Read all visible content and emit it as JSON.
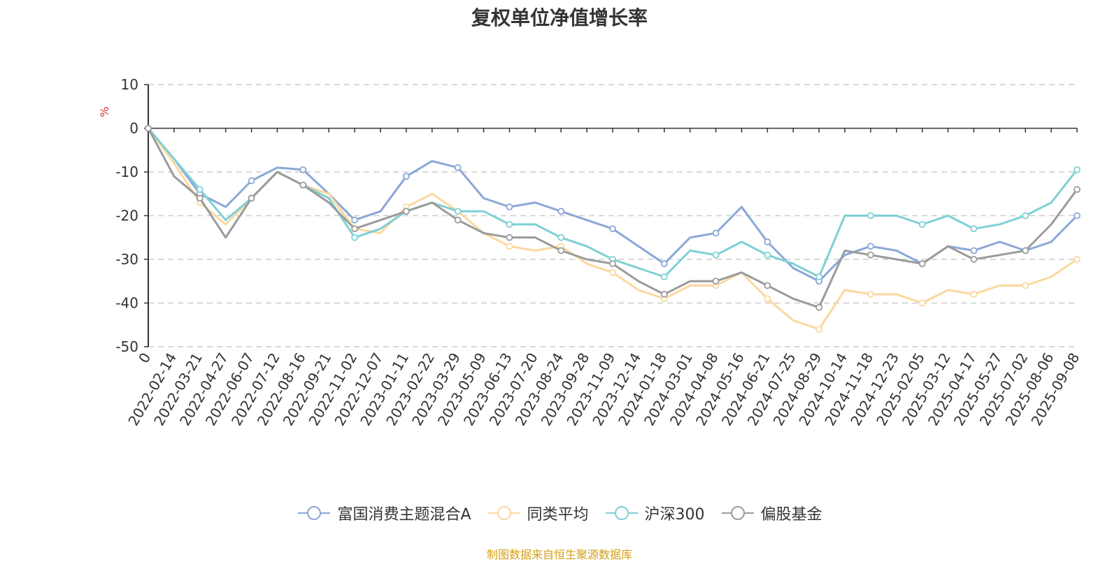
{
  "chart_data": {
    "type": "line",
    "title": "复权单位净值增长率",
    "ylabel": "%",
    "ylim": [
      -50,
      10
    ],
    "yticks": [
      10,
      0,
      -10,
      -20,
      -30,
      -40,
      -50
    ],
    "grid": true,
    "legend_position": "bottom",
    "x_tick_labels": [
      "0",
      "2022-02-14",
      "2022-03-21",
      "2022-04-27",
      "2022-06-07",
      "2022-07-12",
      "2022-08-16",
      "2022-09-21",
      "2022-11-02",
      "2022-12-07",
      "2023-01-11",
      "2023-02-22",
      "2023-03-29",
      "2023-05-09",
      "2023-06-13",
      "2023-07-20",
      "2023-08-24",
      "2023-09-28",
      "2023-11-09",
      "2023-12-14",
      "2024-01-18",
      "2024-03-01",
      "2024-04-08",
      "2024-05-16",
      "2024-06-21",
      "2024-07-25",
      "2024-08-29",
      "2024-10-14",
      "2024-11-18",
      "2024-12-23",
      "2025-02-05",
      "2025-03-12",
      "2025-04-17",
      "2025-05-27",
      "2025-07-02",
      "2025-08-06",
      "2025-09-08"
    ],
    "series": [
      {
        "name": "富国消费主题混合A",
        "color": "#8aa7d8",
        "values": [
          0,
          -7,
          -15,
          -18,
          -12,
          -9,
          -9.5,
          -15,
          -21,
          -19,
          -11,
          -7.5,
          -9,
          -16,
          -18,
          -17,
          -19,
          -21,
          -23,
          -27,
          -31,
          -25,
          -24,
          -18,
          -26,
          -32,
          -35,
          -29,
          -27,
          -28,
          -31,
          -27,
          -28,
          -26,
          -28,
          -26,
          -20
        ]
      },
      {
        "name": "同类平均",
        "color": "#fbd89e",
        "values": [
          0,
          -8,
          -17,
          -22,
          -16,
          -10,
          -13,
          -15,
          -23,
          -24,
          -18,
          -15,
          -19,
          -24,
          -27,
          -28,
          -27,
          -31,
          -33,
          -37,
          -39,
          -36,
          -36,
          -33,
          -39,
          -44,
          -46,
          -37,
          -38,
          -38,
          -40,
          -37,
          -38,
          -36,
          -36,
          -34,
          -30
        ]
      },
      {
        "name": "沪深300",
        "color": "#7ed0d5",
        "values": [
          0,
          -7,
          -14,
          -21,
          -16,
          -10,
          -13,
          -16,
          -25,
          -23,
          -19,
          -17,
          -19,
          -19,
          -22,
          -22,
          -25,
          -27,
          -30,
          -32,
          -34,
          -28,
          -29,
          -26,
          -29,
          -31,
          -34,
          -20,
          -20,
          -20,
          -22,
          -20,
          -23,
          -22,
          -20,
          -17,
          -9.5
        ]
      },
      {
        "name": "偏股基金",
        "color": "#9b9b9b",
        "values": [
          0,
          -11,
          -16,
          -25,
          -16,
          -10,
          -13,
          -17,
          -23,
          -21,
          -19,
          -17,
          -21,
          -24,
          -25,
          -25,
          -28,
          -30,
          -31,
          -35,
          -38,
          -35,
          -35,
          -33,
          -36,
          -39,
          -41,
          -28,
          -29,
          -30,
          -31,
          -27,
          -30,
          -29,
          -28,
          -22,
          -14
        ]
      }
    ]
  },
  "source_note": "制图数据来自恒生聚源数据库",
  "colors": {
    "title": "#333333",
    "source_note": "#d4a017",
    "ylabel": "#e03030",
    "grid": "#cccccc",
    "axis": "#333333"
  }
}
